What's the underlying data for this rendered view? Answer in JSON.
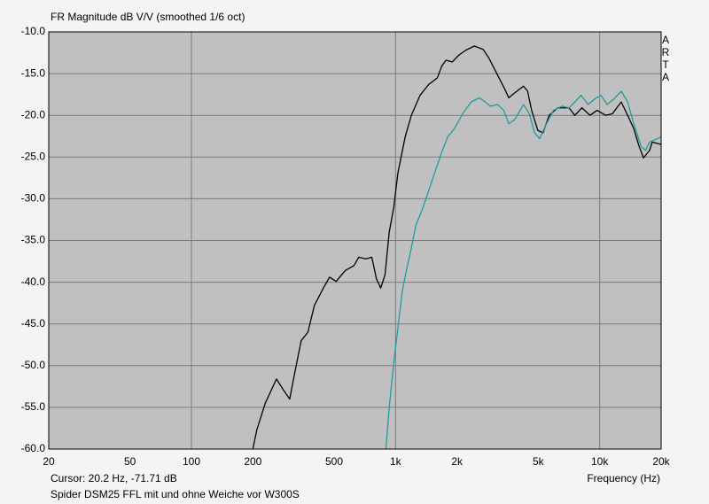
{
  "chart_data": {
    "type": "line",
    "title": "FR Magnitude dB V/V (smoothed 1/6 oct)",
    "brand": "ARTA",
    "x_label": "Frequency (Hz)",
    "cursor": "Cursor: 20.2 Hz, -71.71 dB",
    "caption": "Spider DSM25 FFL mit und ohne Weiche vor W300S",
    "xscale": "log",
    "grid": true,
    "xlim": [
      20,
      20000
    ],
    "ylim": [
      -60,
      -10
    ],
    "xticks": [
      20,
      50,
      100,
      200,
      500,
      {
        "value": 1000,
        "label": "1k"
      },
      {
        "value": 2000,
        "label": "2k"
      },
      {
        "value": 5000,
        "label": "5k"
      },
      {
        "value": 10000,
        "label": "10k"
      },
      {
        "value": 20000,
        "label": "20k"
      }
    ],
    "yticks": [
      {
        "value": -10,
        "label": "-10.0"
      },
      {
        "value": -15,
        "label": "-15.0"
      },
      {
        "value": -20,
        "label": "-20.0"
      },
      {
        "value": -25,
        "label": "-25.0"
      },
      {
        "value": -30,
        "label": "-30.0"
      },
      {
        "value": -35,
        "label": "-35.0"
      },
      {
        "value": -40,
        "label": "-40.0"
      },
      {
        "value": -45,
        "label": "-45.0"
      },
      {
        "value": -50,
        "label": "-50.0"
      },
      {
        "value": -55,
        "label": "-55.0"
      },
      {
        "value": -60,
        "label": "-60.0"
      }
    ],
    "series": [
      {
        "color": "#000000",
        "x": [
          200,
          209,
          230,
          261,
          282,
          303,
          321,
          345,
          372,
          400,
          443,
          475,
          512,
          567,
          626,
          660,
          715,
          765,
          806,
          846,
          888,
          931,
          979,
          1027,
          1114,
          1195,
          1318,
          1454,
          1603,
          1684,
          1766,
          1896,
          2038,
          2208,
          2431,
          2685,
          2860,
          3164,
          3419,
          3585,
          3839,
          4235,
          4436,
          4640,
          4975,
          5278,
          5655,
          6234,
          7073,
          7555,
          8187,
          8960,
          9710,
          10700,
          11550,
          12750,
          13710,
          14690,
          15590,
          16390,
          17560,
          18090,
          20000
        ],
        "values": [
          -60,
          -57.7,
          -54.5,
          -51.6,
          -52.9,
          -54.0,
          -50.8,
          -47.0,
          -46.0,
          -42.8,
          -40.7,
          -39.4,
          -39.9,
          -38.6,
          -38.0,
          -37.0,
          -37.2,
          -37.0,
          -39.6,
          -40.7,
          -39.1,
          -34.0,
          -31.1,
          -26.9,
          -22.6,
          -20.0,
          -17.6,
          -16.3,
          -15.5,
          -14.1,
          -13.4,
          -13.6,
          -12.8,
          -12.2,
          -11.7,
          -12.1,
          -13.1,
          -15.2,
          -16.8,
          -17.9,
          -17.3,
          -16.5,
          -17.1,
          -19.4,
          -21.8,
          -22.1,
          -20.0,
          -19.1,
          -19.1,
          -20.0,
          -19.1,
          -20.0,
          -19.4,
          -20.0,
          -19.8,
          -18.4,
          -20.0,
          -21.6,
          -23.7,
          -25.1,
          -24.2,
          -23.2,
          -23.5
        ]
      },
      {
        "color": "#1f9c9c",
        "x": [
          897,
          931,
          979,
          1027,
          1077,
          1130,
          1195,
          1257,
          1361,
          1454,
          1555,
          1684,
          1800,
          1941,
          2134,
          2344,
          2573,
          2750,
          2915,
          3164,
          3385,
          3585,
          3839,
          4235,
          4520,
          4800,
          5080,
          5490,
          5940,
          6550,
          7073,
          7555,
          8100,
          8780,
          9500,
          10160,
          10870,
          11790,
          12750,
          13710,
          14690,
          15940,
          16760,
          17560,
          20000
        ],
        "values": [
          -60,
          -55.0,
          -49.7,
          -45.5,
          -41.2,
          -38.6,
          -35.9,
          -33.2,
          -31.1,
          -29.0,
          -26.9,
          -24.4,
          -22.6,
          -21.6,
          -19.8,
          -18.4,
          -17.9,
          -18.4,
          -18.9,
          -18.7,
          -19.4,
          -21.0,
          -20.5,
          -18.7,
          -19.8,
          -22.1,
          -22.8,
          -21.0,
          -19.4,
          -18.9,
          -19.1,
          -18.4,
          -17.6,
          -18.7,
          -18.0,
          -17.6,
          -18.7,
          -18.0,
          -17.1,
          -18.4,
          -21.0,
          -23.7,
          -24.2,
          -23.2,
          -22.6
        ]
      }
    ]
  }
}
